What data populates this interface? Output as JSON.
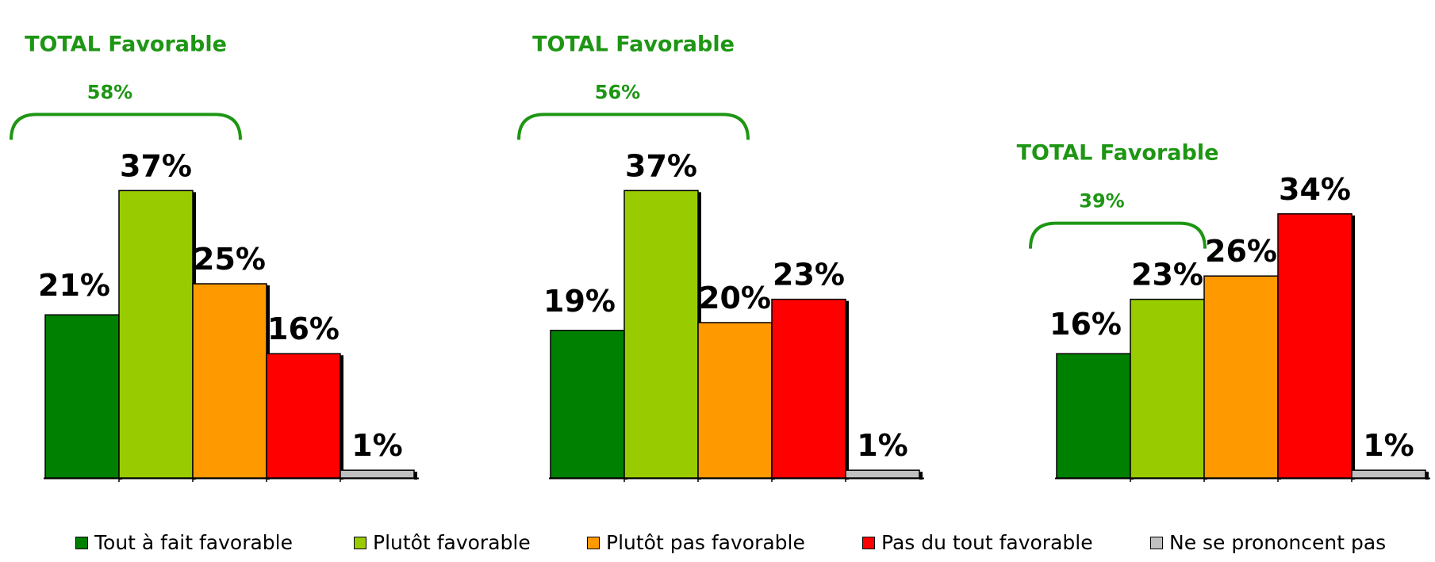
{
  "chart_data": [
    {
      "type": "bar",
      "categories": [
        "Tout à fait favorable",
        "Plutôt favorable",
        "Plutôt pas favorable",
        "Pas du tout favorable",
        "Ne se prononcent pas"
      ],
      "values": [
        21,
        37,
        25,
        16,
        1
      ],
      "value_labels": [
        "21%",
        "37%",
        "25%",
        "16%",
        "1%"
      ],
      "total_title": "TOTAL Favorable",
      "total_value": "58%",
      "ylim": [
        0,
        37
      ]
    },
    {
      "type": "bar",
      "categories": [
        "Tout à fait favorable",
        "Plutôt favorable",
        "Plutôt pas favorable",
        "Pas du tout favorable",
        "Ne se prononcent pas"
      ],
      "values": [
        19,
        37,
        20,
        23,
        1
      ],
      "value_labels": [
        "19%",
        "37%",
        "20%",
        "23%",
        "1%"
      ],
      "total_title": "TOTAL Favorable",
      "total_value": "56%",
      "ylim": [
        0,
        37
      ]
    },
    {
      "type": "bar",
      "categories": [
        "Tout à fait favorable",
        "Plutôt favorable",
        "Plutôt pas favorable",
        "Pas du tout favorable",
        "Ne se prononcent pas"
      ],
      "values": [
        16,
        23,
        26,
        34,
        1
      ],
      "value_labels": [
        "16%",
        "23%",
        "26%",
        "34%",
        "1%"
      ],
      "total_title": "TOTAL Favorable",
      "total_value": "39%",
      "ylim": [
        0,
        37
      ]
    }
  ],
  "legend": [
    {
      "label": "Tout à fait favorable",
      "color": "#008000"
    },
    {
      "label": "Plutôt favorable",
      "color": "#99CC00"
    },
    {
      "label": "Plutôt pas favorable",
      "color": "#FF9900"
    },
    {
      "label": "Pas du tout favorable",
      "color": "#FF0000"
    },
    {
      "label": "Ne se prononcent pas",
      "color": "#C0C0C0"
    }
  ],
  "colors": {
    "total_accent": "#1E9614"
  }
}
